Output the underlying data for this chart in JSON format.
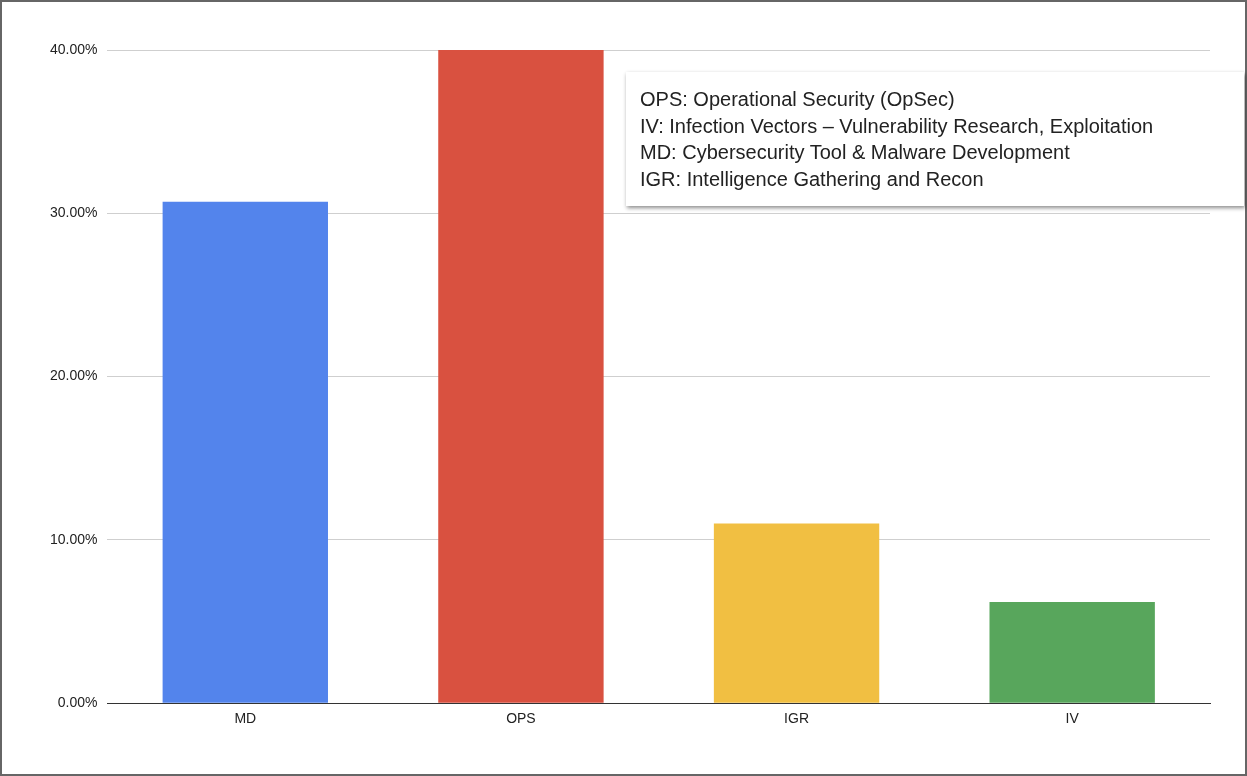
{
  "chart_data": {
    "type": "bar",
    "categories": [
      "MD",
      "OPS",
      "IGR",
      "IV"
    ],
    "values": [
      30.7,
      40.0,
      11.0,
      6.2
    ],
    "colors": [
      "#5384ec",
      "#d95140",
      "#f1bf42",
      "#58a65c"
    ],
    "ylim": [
      0,
      40
    ],
    "yticks": [
      {
        "value": 0,
        "label": "0.00%"
      },
      {
        "value": 10,
        "label": "10.00%"
      },
      {
        "value": 20,
        "label": "20.00%"
      },
      {
        "value": 30,
        "label": "30.00%"
      },
      {
        "value": 40,
        "label": "40.00%"
      }
    ],
    "grid": "y",
    "annotations": [
      "OPS: Operational Security (OpSec)",
      "IV: Infection Vectors – Vulnerability Research, Exploitation",
      "MD: Cybersecurity Tool & Malware Development",
      "IGR: Intelligence Gathering and Recon"
    ]
  }
}
